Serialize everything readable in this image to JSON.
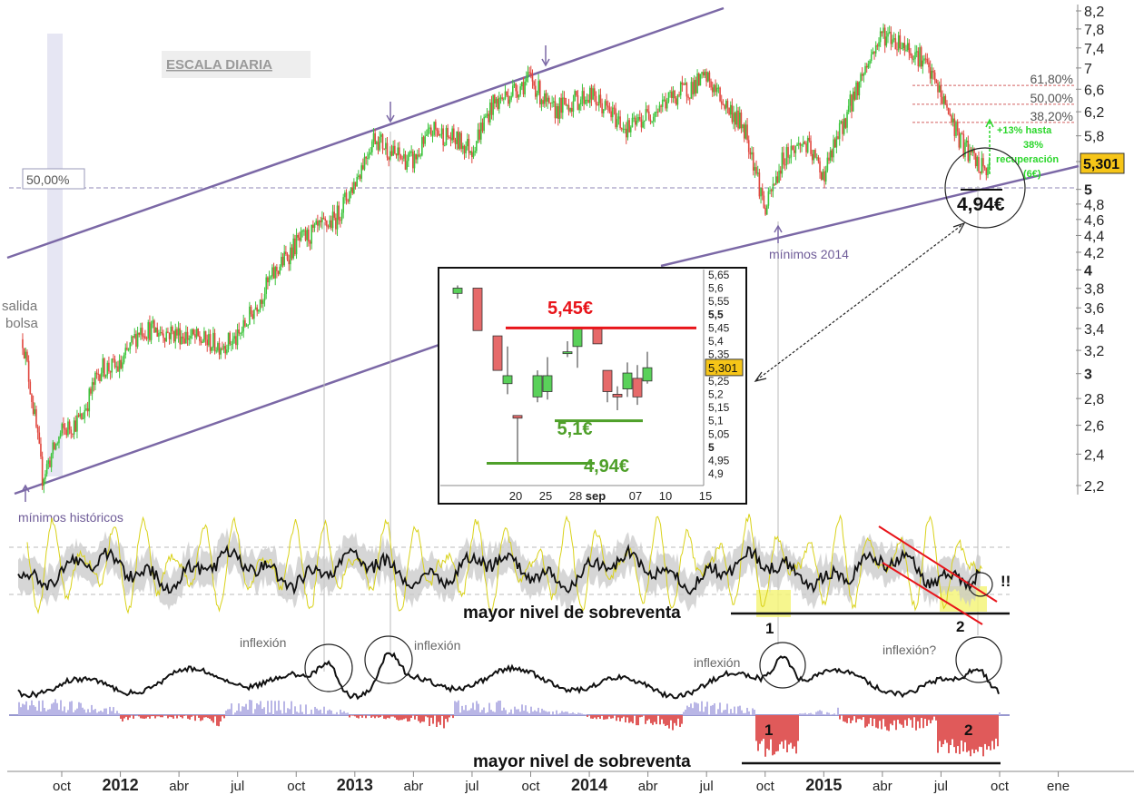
{
  "chart_data": {
    "type": "candlestick",
    "title": "ESCALA DIARIA",
    "y_scale": "log",
    "ylim": [
      2.2,
      8.2
    ],
    "y_ticks": [
      "8,2",
      "7,8",
      "7,4",
      "7",
      "6,6",
      "6,2",
      "5,8",
      "5,4",
      "5",
      "4,8",
      "4,6",
      "4,4",
      "4,2",
      "4",
      "3,8",
      "3,6",
      "3,4",
      "3,2",
      "3",
      "2,8",
      "2,6",
      "2,4",
      "2,2"
    ],
    "y_tick_values": [
      8.2,
      7.8,
      7.4,
      7.0,
      6.6,
      6.2,
      5.8,
      5.4,
      5.0,
      4.8,
      4.6,
      4.4,
      4.2,
      4.0,
      3.8,
      3.6,
      3.4,
      3.2,
      3.0,
      2.8,
      2.6,
      2.4,
      2.2
    ],
    "y_tick_bold": [
      "5",
      "4",
      "3"
    ],
    "x_ticks": [
      "oct",
      "2012",
      "abr",
      "jul",
      "oct",
      "2013",
      "abr",
      "jul",
      "oct",
      "2014",
      "abr",
      "jul",
      "oct",
      "2015",
      "abr",
      "jul",
      "oct",
      "ene"
    ],
    "x_tick_bold": [
      "2012",
      "2013",
      "2014",
      "2015"
    ],
    "x_tick_dates": [
      "2011-10",
      "2012-01",
      "2012-04",
      "2012-07",
      "2012-10",
      "2013-01",
      "2013-04",
      "2013-07",
      "2013-10",
      "2014-01",
      "2014-04",
      "2014-07",
      "2014-10",
      "2015-01",
      "2015-04",
      "2015-07",
      "2015-10",
      "2016-01"
    ],
    "price_path": [
      {
        "date": "2011-08",
        "price": 3.3
      },
      {
        "date": "2011-09",
        "price": 2.25
      },
      {
        "date": "2011-10",
        "price": 2.55
      },
      {
        "date": "2011-11",
        "price": 2.65
      },
      {
        "date": "2011-12",
        "price": 3.05
      },
      {
        "date": "2012-01",
        "price": 3.05
      },
      {
        "date": "2012-02",
        "price": 3.4
      },
      {
        "date": "2012-04",
        "price": 3.35
      },
      {
        "date": "2012-06",
        "price": 3.25
      },
      {
        "date": "2012-07",
        "price": 3.3
      },
      {
        "date": "2012-09",
        "price": 4.0
      },
      {
        "date": "2012-10",
        "price": 4.3
      },
      {
        "date": "2012-12",
        "price": 4.6
      },
      {
        "date": "2013-01",
        "price": 5.1
      },
      {
        "date": "2013-02",
        "price": 5.8
      },
      {
        "date": "2013-03",
        "price": 5.5
      },
      {
        "date": "2013-04",
        "price": 5.4
      },
      {
        "date": "2013-05",
        "price": 5.9
      },
      {
        "date": "2013-07",
        "price": 5.6
      },
      {
        "date": "2013-08",
        "price": 6.3
      },
      {
        "date": "2013-10",
        "price": 6.8
      },
      {
        "date": "2013-11",
        "price": 6.2
      },
      {
        "date": "2014-01",
        "price": 6.5
      },
      {
        "date": "2014-03",
        "price": 5.9
      },
      {
        "date": "2014-05",
        "price": 6.4
      },
      {
        "date": "2014-07",
        "price": 6.8
      },
      {
        "date": "2014-08",
        "price": 6.3
      },
      {
        "date": "2014-09",
        "price": 5.9
      },
      {
        "date": "2014-10",
        "price": 4.7
      },
      {
        "date": "2014-11",
        "price": 5.5
      },
      {
        "date": "2014-12",
        "price": 5.7
      },
      {
        "date": "2015-01",
        "price": 5.2
      },
      {
        "date": "2015-02",
        "price": 6.0
      },
      {
        "date": "2015-03",
        "price": 6.9
      },
      {
        "date": "2015-04",
        "price": 7.7
      },
      {
        "date": "2015-05",
        "price": 7.5
      },
      {
        "date": "2015-06",
        "price": 7.2
      },
      {
        "date": "2015-07",
        "price": 6.5
      },
      {
        "date": "2015-08",
        "price": 5.7
      },
      {
        "date": "2015-09",
        "price": 5.3
      }
    ],
    "last_price": "5,301",
    "level_label": "50,00%",
    "fib_levels": [
      {
        "label": "61,80%",
        "value": 6.67
      },
      {
        "label": "50,00%",
        "value": 6.33
      },
      {
        "label": "38,20%",
        "value": 6.02
      }
    ],
    "annotations": {
      "salida_bolsa": [
        "salida",
        "bolsa"
      ],
      "minimos_historicos": "mínimos históricos",
      "minimos_2014": "mínimos 2014",
      "price_494": "4,94€",
      "recovery_lines": [
        "+13% hasta",
        "38%",
        "recuperación",
        "(6€)"
      ]
    },
    "inset": {
      "y_ticks": [
        "5,65",
        "5,6",
        "5,55",
        "5,5",
        "5,45",
        "5,4",
        "5,35",
        "5,3",
        "5,25",
        "5,2",
        "5,15",
        "5,1",
        "5,05",
        "5",
        "4,95",
        "4,9"
      ],
      "y_tick_values": [
        5.65,
        5.6,
        5.55,
        5.5,
        5.45,
        5.4,
        5.35,
        5.3,
        5.25,
        5.2,
        5.15,
        5.1,
        5.05,
        5.0,
        4.95,
        4.9
      ],
      "ylim": [
        4.88,
        5.67
      ],
      "x_ticks": [
        "20",
        "25",
        "28",
        "sep",
        "07",
        "10",
        "15"
      ],
      "x_tick_day_index": [
        6,
        9,
        12,
        14,
        18,
        21,
        25
      ],
      "candles": [
        {
          "o": 5.58,
          "h": 5.61,
          "l": 5.56,
          "c": 5.6
        },
        {
          "o": 5.6,
          "h": 5.6,
          "l": 5.44,
          "c": 5.44
        },
        {
          "o": 5.42,
          "h": 5.42,
          "l": 5.29,
          "c": 5.29
        },
        {
          "o": 5.24,
          "h": 5.38,
          "l": 5.2,
          "c": 5.27
        },
        {
          "o": 5.12,
          "h": 5.12,
          "l": 4.94,
          "c": 5.11
        },
        {
          "o": 5.19,
          "h": 5.29,
          "l": 5.17,
          "c": 5.27
        },
        {
          "o": 5.21,
          "h": 5.34,
          "l": 5.18,
          "c": 5.27
        },
        {
          "o": 5.36,
          "h": 5.4,
          "l": 5.34,
          "c": 5.36
        },
        {
          "o": 5.38,
          "h": 5.45,
          "l": 5.3,
          "c": 5.45
        },
        {
          "o": 5.45,
          "h": 5.45,
          "l": 5.39,
          "c": 5.39
        },
        {
          "o": 5.29,
          "h": 5.29,
          "l": 5.17,
          "c": 5.21
        },
        {
          "o": 5.2,
          "h": 5.23,
          "l": 5.14,
          "c": 5.19
        },
        {
          "o": 5.22,
          "h": 5.32,
          "l": 5.19,
          "c": 5.28
        },
        {
          "o": 5.26,
          "h": 5.31,
          "l": 5.16,
          "c": 5.19
        },
        {
          "o": 5.25,
          "h": 5.36,
          "l": 5.24,
          "c": 5.3
        }
      ],
      "levels": [
        {
          "label": "5,45€",
          "value": 5.45,
          "color": "#e8141a"
        },
        {
          "label": "5,1€",
          "value": 5.1,
          "color": "#4fa02a"
        },
        {
          "label": "4,94€",
          "value": 4.94,
          "color": "#4fa02a"
        }
      ],
      "last_price": "5,301"
    },
    "oscillator": {
      "label": "mayor nivel de sobreventa",
      "marks": [
        "1",
        "2",
        "!!"
      ]
    },
    "momentum": {
      "inflexion_labels": [
        "inflexión",
        "inflexión",
        "inflexión",
        "inflexión?"
      ],
      "histogram_label": "mayor nivel de sobreventa",
      "marks": [
        "1",
        "2"
      ]
    },
    "colors": {
      "up": "#3cc43c",
      "down": "#e0473f",
      "channel": "#7b68a6",
      "annotation": "#6f5c98",
      "oscillator_fast": "#d9d21a",
      "histogram_positive": "#b9b6e6",
      "histogram_negative": "#e05a5a",
      "fib_line": "#d46060"
    }
  }
}
